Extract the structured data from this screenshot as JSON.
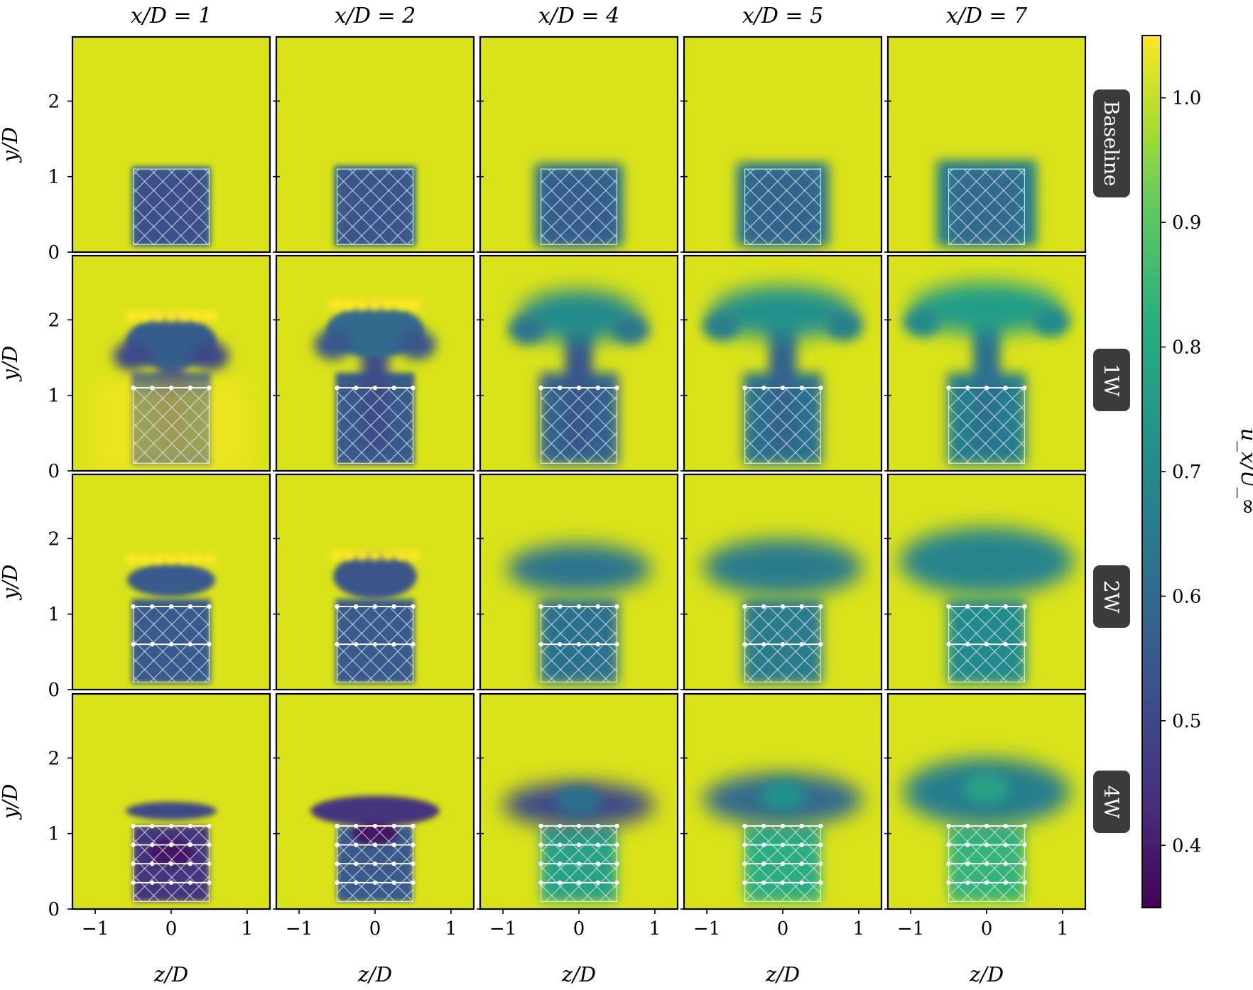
{
  "chart_data": {
    "type": "heatmap",
    "title": "",
    "column_titles": [
      "x/D = 1",
      "x/D = 2",
      "x/D = 4",
      "x/D = 5",
      "x/D = 7"
    ],
    "x_positions": [
      1,
      2,
      4,
      5,
      7
    ],
    "row_labels": [
      "Baseline",
      "1W",
      "2W",
      "4W"
    ],
    "xlabel": "z/D",
    "ylabel": "y/D",
    "xlim": [
      -1.3,
      1.3
    ],
    "ylim": [
      0,
      2.85
    ],
    "xticks": [
      -1,
      0,
      1
    ],
    "xtick_labels": [
      "−1",
      "0",
      "1"
    ],
    "yticks": [
      0,
      1,
      2
    ],
    "ytick_labels": [
      "0",
      "1",
      "2"
    ],
    "colorbar": {
      "label": "u_x/U_∞",
      "range": [
        0.35,
        1.05
      ],
      "ticks": [
        0.4,
        0.5,
        0.6,
        0.7,
        0.8,
        0.9,
        1.0
      ],
      "tick_labels": [
        "0.4",
        "0.5",
        "0.6",
        "0.7",
        "0.8",
        "0.9",
        "1.0"
      ],
      "colormap": "viridis"
    },
    "rotor_box": {
      "z": [
        -0.5,
        0.5
      ],
      "y": [
        0.1,
        1.1
      ]
    },
    "rotor_rows": {
      "Baseline": [],
      "1W": [
        1.1
      ],
      "2W": [
        1.1,
        0.6
      ],
      "4W": [
        1.1,
        0.85,
        0.6,
        0.35
      ]
    },
    "freestream_value": 1.02,
    "wake_min_value": {
      "Baseline": 0.52,
      "1W": 0.53,
      "2W": 0.55,
      "4W": 0.38
    },
    "grid": false
  },
  "colors": {
    "background_field": "#dae319",
    "wake_core": "#3b528b",
    "hatch": "#e6eef2",
    "badge": "#3b3b3b",
    "badge_text": "#ffffff"
  }
}
